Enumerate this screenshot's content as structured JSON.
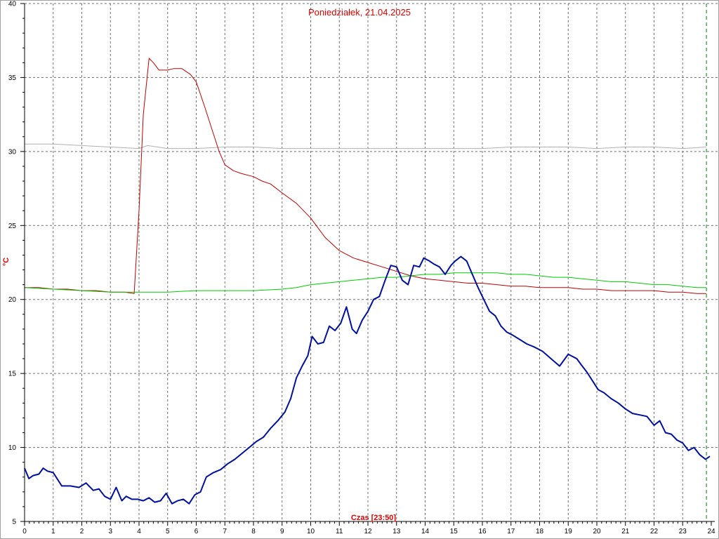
{
  "chart_data": {
    "type": "line",
    "title": "Poniedziałek, 21.04.2025",
    "xlabel": "Czas [23:50]",
    "ylabel": "°C",
    "xlim": [
      0,
      24
    ],
    "ylim": [
      5,
      40
    ],
    "x_ticks": [
      0,
      1,
      2,
      3,
      4,
      5,
      6,
      7,
      8,
      9,
      10,
      11,
      12,
      13,
      14,
      15,
      16,
      17,
      18,
      19,
      20,
      21,
      22,
      23,
      24
    ],
    "y_ticks": [
      5,
      10,
      15,
      20,
      25,
      30,
      35,
      40
    ],
    "grid": true,
    "current_time_marker": 23.83,
    "colors": {
      "title": "#e00000",
      "grid": "#707070",
      "marker": "#008000"
    },
    "series": [
      {
        "color": "#b0b0b0",
        "x": [
          0,
          1,
          2,
          3,
          4,
          4.3,
          5,
          6,
          7,
          8,
          9,
          10,
          11,
          12,
          13,
          14,
          15,
          16,
          17,
          18,
          19,
          20,
          21,
          22,
          23,
          23.83
        ],
        "y": [
          30.5,
          30.5,
          30.4,
          30.3,
          30.2,
          30.4,
          30.2,
          30.2,
          30.3,
          30.3,
          30.2,
          30.2,
          30.2,
          30.2,
          30.2,
          30.2,
          30.2,
          30.2,
          30.3,
          30.3,
          30.3,
          30.2,
          30.3,
          30.3,
          30.2,
          30.3
        ]
      },
      {
        "color": "#c00000",
        "x": [
          0,
          0.5,
          1,
          1.5,
          2,
          2.5,
          3,
          3.5,
          3.83,
          4.0,
          4.15,
          4.35,
          4.5,
          4.7,
          5.0,
          5.2,
          5.5,
          5.8,
          6.0,
          6.3,
          6.6,
          6.8,
          7.0,
          7.3,
          7.6,
          8.0,
          8.3,
          8.6,
          9.0,
          9.5,
          10.0,
          10.5,
          11.0,
          11.5,
          12.0,
          12.5,
          13.0,
          13.5,
          14.0,
          14.5,
          15.0,
          15.5,
          16.0,
          16.5,
          17.0,
          17.5,
          18.0,
          18.5,
          19.0,
          19.5,
          20.0,
          20.5,
          21.0,
          21.5,
          22.0,
          22.5,
          23.0,
          23.5,
          23.83
        ],
        "y": [
          20.8,
          20.8,
          20.7,
          20.7,
          20.6,
          20.6,
          20.5,
          20.5,
          20.4,
          26.0,
          32.5,
          36.3,
          36.0,
          35.5,
          35.5,
          35.6,
          35.6,
          35.2,
          34.7,
          33.0,
          31.2,
          30.0,
          29.1,
          28.7,
          28.5,
          28.3,
          28.0,
          27.8,
          27.2,
          26.5,
          25.5,
          24.2,
          23.3,
          22.8,
          22.5,
          22.2,
          21.9,
          21.6,
          21.4,
          21.3,
          21.2,
          21.1,
          21.1,
          21.0,
          20.9,
          20.9,
          20.8,
          20.8,
          20.8,
          20.7,
          20.7,
          20.6,
          20.6,
          20.6,
          20.6,
          20.5,
          20.5,
          20.4,
          20.4
        ]
      },
      {
        "color": "#00cc00",
        "x": [
          0,
          1,
          2,
          3,
          4,
          5,
          6,
          7,
          8,
          9,
          9.5,
          10,
          10.5,
          11,
          11.5,
          12,
          12.5,
          13,
          13.5,
          14,
          14.5,
          15,
          15.5,
          16,
          16.5,
          17,
          17.5,
          18,
          18.5,
          19,
          19.5,
          20,
          20.5,
          21,
          21.5,
          22,
          22.5,
          23,
          23.5,
          23.83
        ],
        "y": [
          20.8,
          20.7,
          20.6,
          20.5,
          20.5,
          20.5,
          20.6,
          20.6,
          20.6,
          20.7,
          20.8,
          21.0,
          21.1,
          21.2,
          21.3,
          21.4,
          21.5,
          21.5,
          21.6,
          21.7,
          21.7,
          21.8,
          21.8,
          21.8,
          21.8,
          21.7,
          21.7,
          21.6,
          21.5,
          21.5,
          21.4,
          21.3,
          21.2,
          21.2,
          21.1,
          21.0,
          21.0,
          20.9,
          20.8,
          20.8
        ]
      },
      {
        "color": "#0010a0",
        "x": [
          0,
          0.15,
          0.3,
          0.5,
          0.65,
          0.8,
          1.0,
          1.3,
          1.6,
          1.9,
          2.15,
          2.4,
          2.6,
          2.8,
          3.0,
          3.2,
          3.4,
          3.55,
          3.75,
          3.95,
          4.15,
          4.35,
          4.55,
          4.75,
          4.95,
          5.15,
          5.35,
          5.55,
          5.75,
          5.95,
          6.15,
          6.35,
          6.6,
          6.85,
          7.1,
          7.35,
          7.6,
          7.85,
          8.1,
          8.35,
          8.6,
          8.85,
          9.1,
          9.3,
          9.5,
          9.7,
          9.9,
          10.05,
          10.25,
          10.45,
          10.65,
          10.85,
          11.05,
          11.25,
          11.45,
          11.6,
          11.8,
          12.0,
          12.2,
          12.4,
          12.6,
          12.8,
          13.0,
          13.2,
          13.4,
          13.6,
          13.8,
          13.95,
          14.15,
          14.3,
          14.5,
          14.7,
          14.9,
          15.05,
          15.25,
          15.45,
          15.65,
          15.85,
          16.05,
          16.25,
          16.45,
          16.65,
          16.85,
          17.05,
          17.3,
          17.55,
          17.8,
          18.1,
          18.4,
          18.7,
          19.0,
          19.3,
          19.45,
          19.65,
          19.85,
          20.05,
          20.25,
          20.5,
          20.75,
          21.0,
          21.25,
          21.5,
          21.75,
          22.0,
          22.2,
          22.4,
          22.6,
          22.8,
          23.0,
          23.2,
          23.4,
          23.6,
          23.8,
          23.95
        ],
        "y": [
          8.6,
          7.9,
          8.1,
          8.2,
          8.6,
          8.4,
          8.3,
          7.4,
          7.4,
          7.3,
          7.6,
          7.1,
          7.2,
          6.7,
          6.5,
          7.3,
          6.4,
          6.7,
          6.5,
          6.5,
          6.4,
          6.6,
          6.3,
          6.4,
          6.9,
          6.2,
          6.4,
          6.5,
          6.2,
          6.8,
          7.0,
          8.0,
          8.3,
          8.5,
          8.9,
          9.2,
          9.6,
          10.0,
          10.4,
          10.7,
          11.3,
          11.8,
          12.4,
          13.3,
          14.7,
          15.5,
          16.2,
          17.5,
          17.0,
          17.1,
          18.2,
          17.9,
          18.4,
          19.5,
          18.0,
          17.7,
          18.6,
          19.2,
          20.0,
          20.2,
          21.3,
          22.3,
          22.2,
          21.3,
          21.0,
          22.3,
          22.2,
          22.8,
          22.6,
          22.4,
          22.2,
          21.7,
          22.3,
          22.6,
          22.9,
          22.6,
          21.7,
          20.8,
          20.0,
          19.2,
          18.9,
          18.2,
          17.8,
          17.6,
          17.3,
          17.0,
          16.8,
          16.5,
          16.0,
          15.5,
          16.3,
          16.0,
          15.6,
          15.1,
          14.5,
          13.9,
          13.7,
          13.3,
          13.0,
          12.6,
          12.3,
          12.2,
          12.1,
          11.5,
          11.8,
          11.0,
          10.9,
          10.5,
          10.3,
          9.8,
          10.0,
          9.5,
          9.2,
          9.4
        ]
      }
    ]
  }
}
